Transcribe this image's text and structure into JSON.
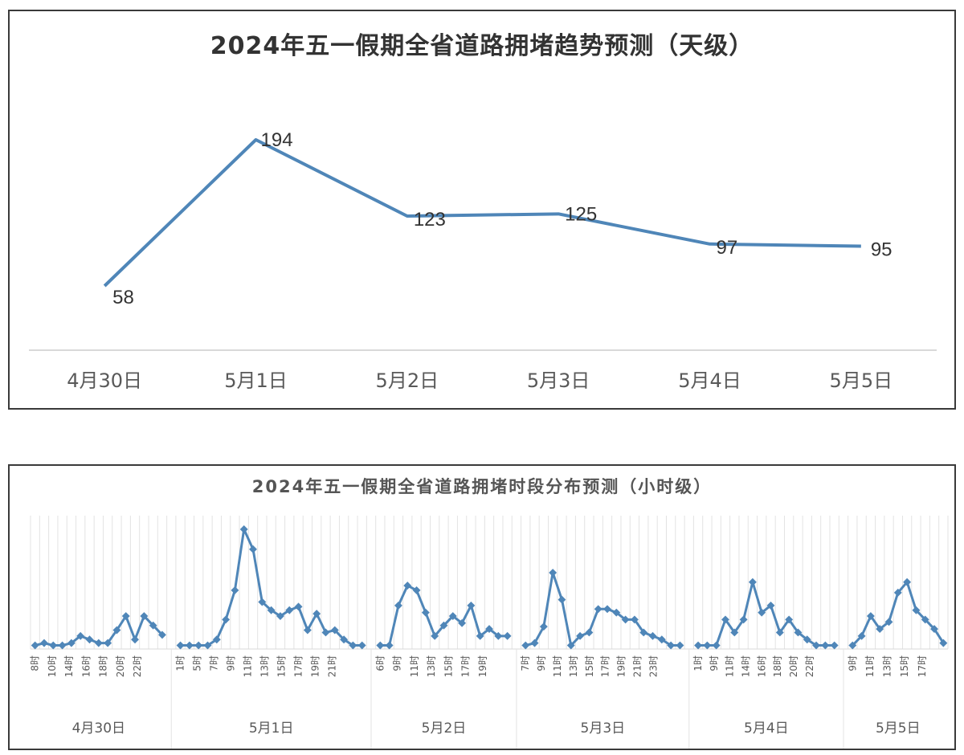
{
  "colors": {
    "line": "#4f86b8",
    "marker": "#4f86b8",
    "grid": "#e3e3e3",
    "axis": "#d9d9d9",
    "text": "#595959"
  },
  "chart_data": [
    {
      "type": "line",
      "title": "2024年五一假期全省道路拥堵趋势预测（天级）",
      "categories": [
        "4月30日",
        "5月1日",
        "5月2日",
        "5月3日",
        "5月4日",
        "5月5日"
      ],
      "values": [
        58,
        194,
        123,
        125,
        97,
        95
      ],
      "data_labels": [
        "58",
        "194",
        "123",
        "125",
        "97",
        "95"
      ],
      "xlabel": "",
      "ylabel": "",
      "grid": false,
      "legend": "none"
    },
    {
      "type": "line",
      "title": "2024年五一假期全省道路拥堵时段分布预测（小时级）",
      "xlabel": "",
      "ylabel": "",
      "grid": "vertical",
      "legend": "none",
      "note": "values are relative congestion levels estimated from pixel heights (no y-axis shown)",
      "groups": [
        {
          "date": "4月30日",
          "tick_labels": [
            "8时",
            "10时",
            "14时",
            "16时",
            "18时",
            "20时",
            "22时"
          ],
          "values": [
            0.1,
            0.3,
            0.1,
            0.1,
            0.3,
            0.9,
            0.6,
            0.3,
            0.3,
            1.4,
            2.6,
            0.6,
            2.6,
            1.8,
            1.0
          ]
        },
        {
          "date": "5月1日",
          "tick_labels": [
            "1时",
            "5时",
            "7时",
            "9时",
            "11时",
            "13时",
            "15时",
            "17时",
            "19时",
            "21时"
          ],
          "values": [
            0.1,
            0.1,
            0.1,
            0.1,
            0.6,
            2.3,
            4.8,
            10.0,
            8.3,
            3.8,
            3.1,
            2.6,
            3.1,
            3.4,
            1.4,
            2.8,
            1.2,
            1.4,
            0.6,
            0.1,
            0.1
          ]
        },
        {
          "date": "5月2日",
          "tick_labels": [
            "6时",
            "9时",
            "11时",
            "13时",
            "15时",
            "17时",
            "19时"
          ],
          "values": [
            0.1,
            0.1,
            3.5,
            5.2,
            4.8,
            2.9,
            0.9,
            1.8,
            2.6,
            2.0,
            3.5,
            0.9,
            1.5,
            0.9,
            0.9
          ]
        },
        {
          "date": "5月3日",
          "tick_labels": [
            "7时",
            "9时",
            "11时",
            "13时",
            "15时",
            "17时",
            "19时",
            "21时",
            "23时"
          ],
          "values": [
            0.1,
            0.3,
            1.7,
            6.3,
            4.0,
            0.1,
            0.9,
            1.2,
            3.2,
            3.2,
            2.9,
            2.3,
            2.3,
            1.2,
            0.9,
            0.6,
            0.1,
            0.1
          ]
        },
        {
          "date": "5月4日",
          "tick_labels": [
            "1时",
            "9时",
            "11时",
            "14时",
            "16时",
            "18时",
            "20时",
            "22时"
          ],
          "values": [
            0.1,
            0.1,
            0.1,
            2.3,
            1.2,
            2.3,
            5.5,
            2.9,
            3.5,
            1.2,
            2.3,
            1.2,
            0.6,
            0.1,
            0.1,
            0.1
          ]
        },
        {
          "date": "5月5日",
          "tick_labels": [
            "9时",
            "11时",
            "13时",
            "15时",
            "17时"
          ],
          "values": [
            0.1,
            0.9,
            2.6,
            1.5,
            2.1,
            4.6,
            5.5,
            3.1,
            2.3,
            1.5,
            0.3
          ]
        }
      ]
    }
  ]
}
